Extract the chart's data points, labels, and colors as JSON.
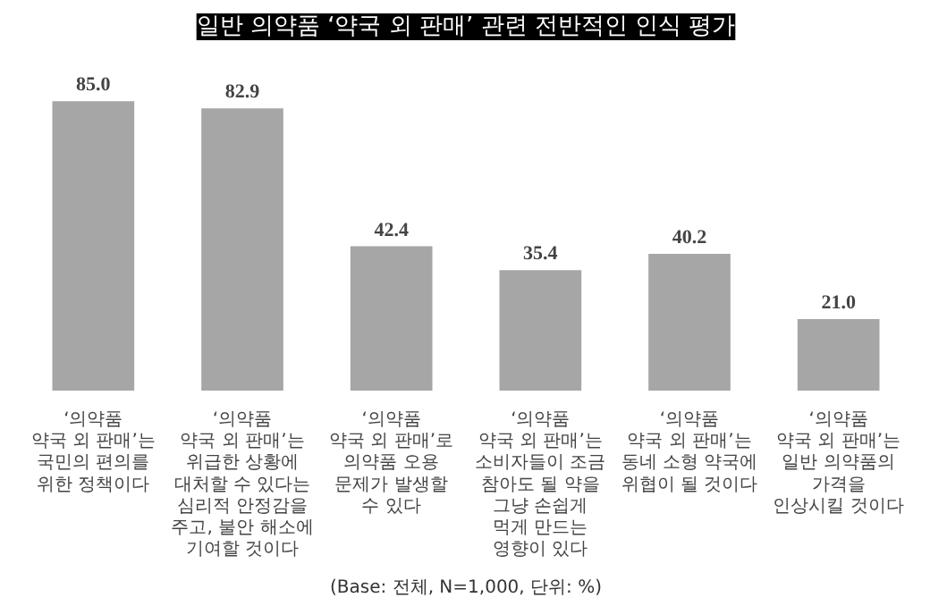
{
  "chart_data": {
    "type": "bar",
    "title": "일반 의약품 ‘약국 외 판매’ 관련 전반적인 인식 평가",
    "categories": [
      "‘의약품\n약국 외 판매’는\n국민의 편의를\n위한 정책이다",
      "‘의약품\n약국 외 판매’는\n위급한 상황에\n대처할 수 있다는\n심리적 안정감을\n주고, 불안 해소에\n기여할 것이다",
      "‘의약품\n약국 외 판매’로\n의약품 오용\n문제가 발생할\n수 있다",
      "‘의약품\n약국 외 판매’는\n소비자들이 조금\n참아도 될 약을\n그냥 손쉽게\n먹게 만드는\n영향이 있다",
      "‘의약품\n약국 외 판매’는\n동네 소형 약국에\n위협이 될 것이다",
      "‘의약품\n약국 외 판매’는\n일반 의약품의\n가격을\n인상시킬 것이다"
    ],
    "values": [
      85.0,
      82.9,
      42.4,
      35.4,
      40.2,
      21.0
    ],
    "value_labels": [
      "85.0",
      "82.9",
      "42.4",
      "35.4",
      "40.2",
      "21.0"
    ],
    "color": "#a6a6a6",
    "grid": false,
    "annotations": [
      "(Base: 전체, N=1,000, 단위: %)"
    ]
  }
}
